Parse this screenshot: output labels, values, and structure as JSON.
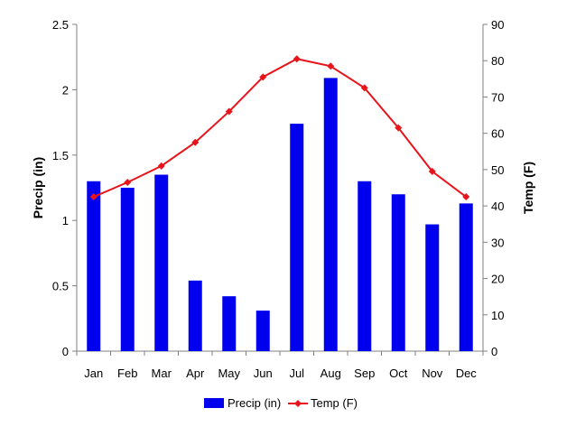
{
  "chart_data": {
    "type": "bar",
    "title": "",
    "categories": [
      "Jan",
      "Feb",
      "Mar",
      "Apr",
      "May",
      "Jun",
      "Jul",
      "Aug",
      "Sep",
      "Oct",
      "Nov",
      "Dec"
    ],
    "series": [
      {
        "name": "Precip (in)",
        "type": "bar",
        "axis": "left",
        "color": "#0000ee",
        "values": [
          1.3,
          1.25,
          1.35,
          0.54,
          0.42,
          0.31,
          1.74,
          2.09,
          1.3,
          1.2,
          0.97,
          1.13
        ]
      },
      {
        "name": "Temp (F)",
        "type": "line",
        "axis": "right",
        "color": "#e8141c",
        "marker": "diamond",
        "values": [
          42.5,
          46.5,
          51,
          57.5,
          66,
          75.5,
          80.5,
          78.5,
          72.5,
          61.5,
          49.5,
          42.5
        ]
      }
    ],
    "y_left": {
      "label": "Precip (in)",
      "range": [
        0,
        2.5
      ],
      "ticks": [
        0,
        0.5,
        1,
        1.5,
        2,
        2.5
      ],
      "tick_labels": [
        "0",
        "0.5",
        "1",
        "1.5",
        "2",
        "2.5"
      ]
    },
    "y_right": {
      "label": "Temp (F)",
      "range": [
        0,
        90
      ],
      "ticks": [
        0,
        10,
        20,
        30,
        40,
        50,
        60,
        70,
        80,
        90
      ],
      "tick_labels": [
        "0",
        "10",
        "20",
        "30",
        "40",
        "50",
        "60",
        "70",
        "80",
        "90"
      ]
    },
    "grid": false,
    "legend": {
      "position": "bottom",
      "entries": [
        "Precip (in)",
        "Temp (F)"
      ]
    }
  }
}
